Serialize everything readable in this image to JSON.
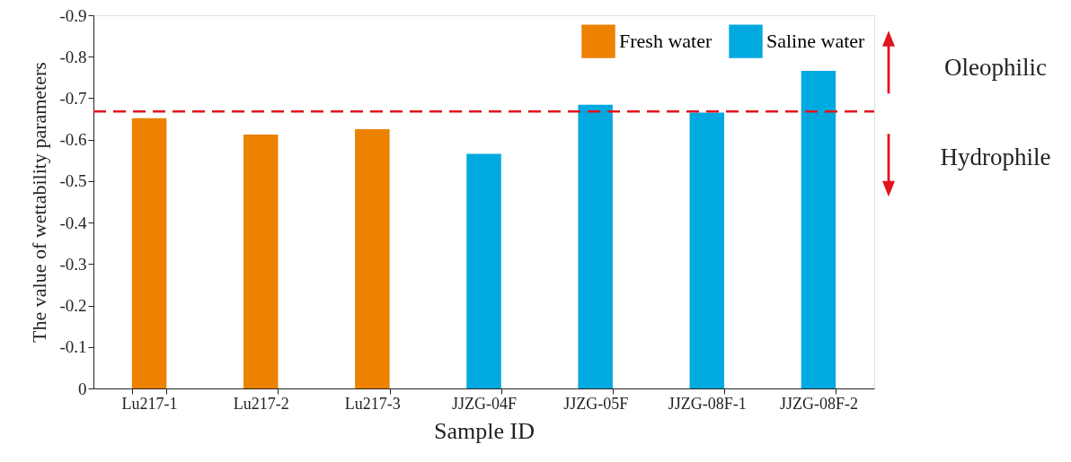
{
  "chart_data": {
    "type": "bar",
    "xlabel": "Sample ID",
    "ylabel": "The value of wettability parameters",
    "categories": [
      "Lu217-1",
      "Lu217-2",
      "Lu217-3",
      "JJZG-04F",
      "JJZG-05F",
      "JJZG-08F-1",
      "JJZG-08F-2"
    ],
    "series": [
      {
        "name": "Fresh water",
        "color": "#ec8200",
        "values": [
          -0.652,
          -0.612,
          -0.625,
          null,
          null,
          null,
          null
        ]
      },
      {
        "name": "Saline water",
        "color": "#00a9e0",
        "values": [
          null,
          null,
          null,
          -0.566,
          -0.684,
          -0.665,
          -0.766
        ]
      }
    ],
    "ylim": [
      0,
      -0.9
    ],
    "yticks": [
      {
        "value": 0,
        "label": "0"
      },
      {
        "value": -0.1,
        "label": "-0.1"
      },
      {
        "value": -0.2,
        "label": "-0.2"
      },
      {
        "value": -0.3,
        "label": "-0.3"
      },
      {
        "value": -0.4,
        "label": "-0.4"
      },
      {
        "value": -0.5,
        "label": "-0.5"
      },
      {
        "value": -0.6,
        "label": "-0.6"
      },
      {
        "value": -0.7,
        "label": "-0.7"
      },
      {
        "value": -0.8,
        "label": "-0.8"
      },
      {
        "value": -0.9,
        "label": "-0.9"
      }
    ],
    "ref_lines": [
      {
        "axis": "y",
        "value": -0.668,
        "color": "#e1141e",
        "line_style": "dashed"
      }
    ],
    "annotations": [
      "Oleophilic",
      "Hydrophile"
    ],
    "legend": "top right",
    "grid": false
  }
}
